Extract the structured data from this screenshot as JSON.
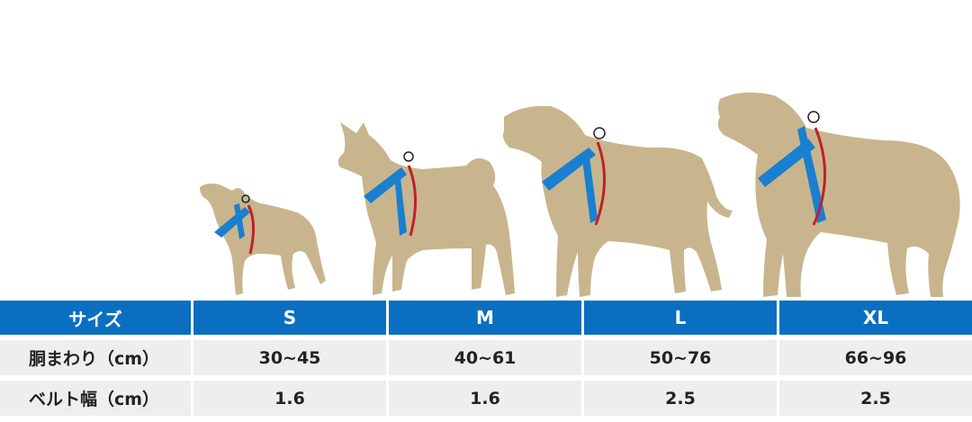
{
  "illustration": {
    "dog_color": "#c8b58d",
    "harness_color": "#1a7fd0",
    "arrow_color": "#c0202a",
    "dogs": [
      {
        "size": "S",
        "icon": "small-dog-icon"
      },
      {
        "size": "M",
        "icon": "medium-dog-icon"
      },
      {
        "size": "L",
        "icon": "large-dog-icon"
      },
      {
        "size": "XL",
        "icon": "xl-dog-icon"
      }
    ]
  },
  "table": {
    "header": [
      "サイズ",
      "S",
      "M",
      "L",
      "XL"
    ],
    "rows": [
      {
        "label": "胴まわり（cm）",
        "values": [
          "30~45",
          "40~61",
          "50~76",
          "66~96"
        ]
      },
      {
        "label": "ベルト幅（cm）",
        "values": [
          "1.6",
          "1.6",
          "2.5",
          "2.5"
        ]
      }
    ],
    "header_color": "#0a6fc0",
    "row_color": "#eeeeee"
  }
}
